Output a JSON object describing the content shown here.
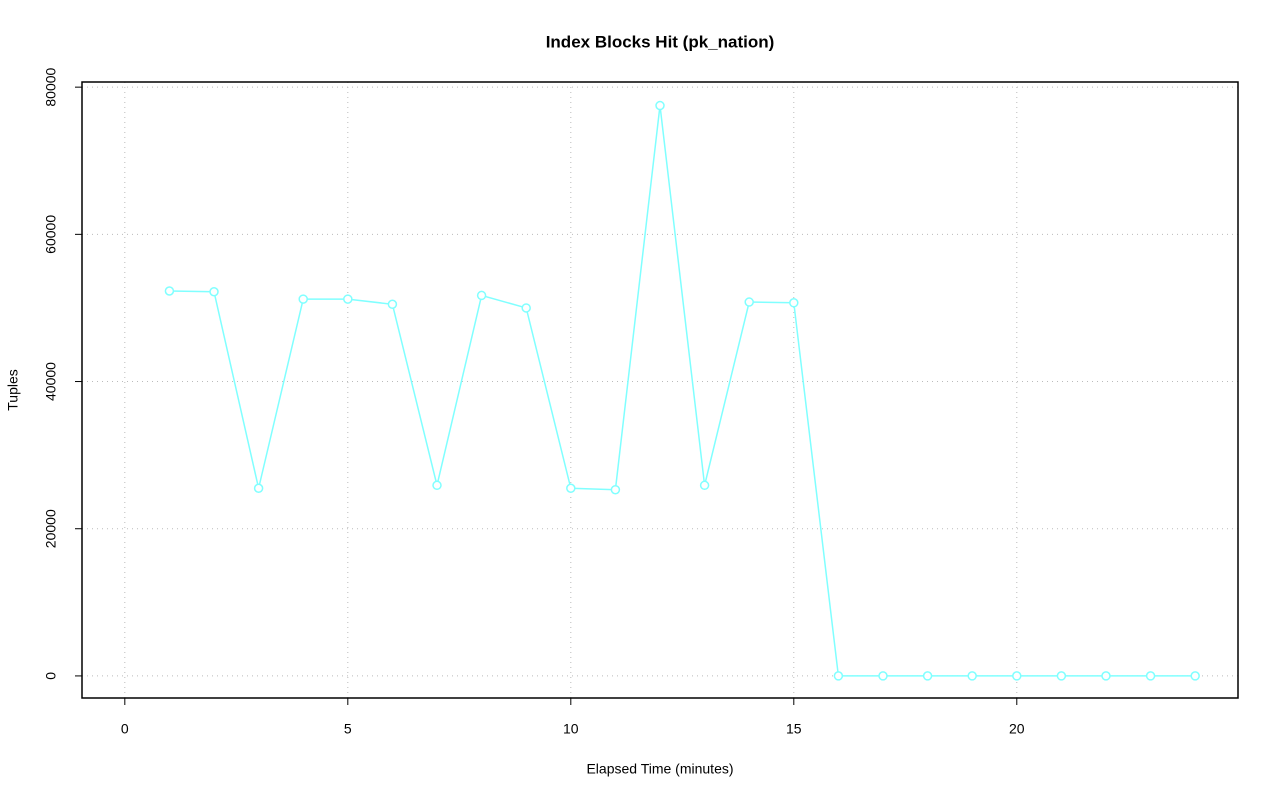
{
  "chart_data": {
    "type": "line",
    "title": "Index Blocks Hit (pk_nation)",
    "x_label": "Elapsed Time (minutes)",
    "y_label": "Tuples",
    "x": [
      1,
      2,
      3,
      4,
      5,
      6,
      7,
      8,
      9,
      10,
      11,
      12,
      13,
      14,
      15,
      16,
      17,
      18,
      19,
      20,
      21,
      22,
      23,
      24
    ],
    "series": [
      {
        "name": "pk_nation",
        "color": "#80ffff",
        "values": [
          52300,
          52200,
          25500,
          51200,
          51200,
          50500,
          25900,
          51700,
          50000,
          25500,
          25300,
          77500,
          25900,
          50800,
          50700,
          0,
          0,
          0,
          0,
          0,
          0,
          0,
          0,
          0
        ]
      }
    ],
    "xlim": [
      -0.96,
      24.96
    ],
    "xticks": [
      0,
      5,
      10,
      15,
      20
    ],
    "ylim": [
      -3000,
      80700
    ],
    "yticks": [
      0,
      20000,
      40000,
      60000,
      80000
    ],
    "grid": true
  }
}
